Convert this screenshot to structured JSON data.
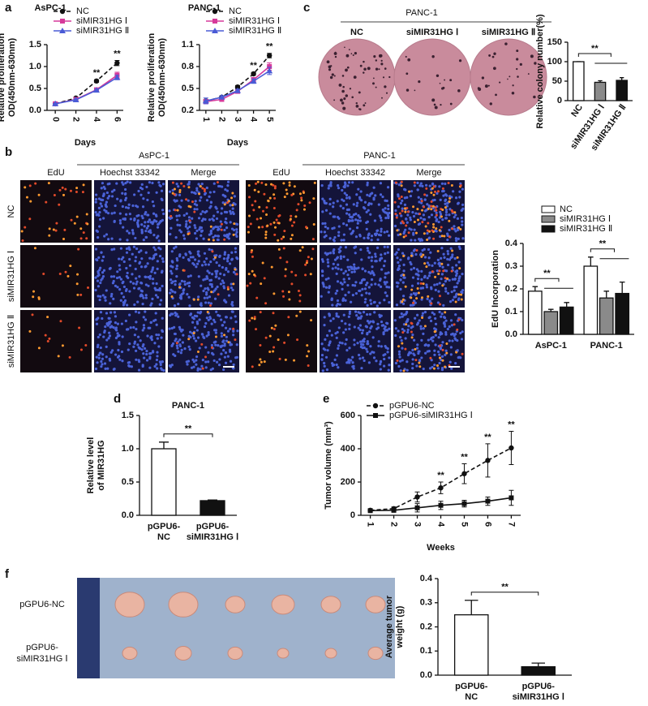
{
  "figure": {
    "panel_labels": [
      "a",
      "b",
      "c",
      "d",
      "e",
      "f"
    ],
    "colony": {
      "title": "PANC-1",
      "labels": [
        "NC",
        "siMIR31HG Ⅰ",
        "siMIR31HG Ⅱ"
      ]
    },
    "microscopy": {
      "groups": [
        "AsPC-1",
        "PANC-1"
      ],
      "channels": [
        "EdU",
        "Hoechst 33342",
        "Merge"
      ],
      "rows": [
        "NC",
        "siMIR31HG Ⅰ",
        "siMIR31HG Ⅱ"
      ]
    },
    "photo": {
      "rows": [
        [
          "pGPU6-NC"
        ],
        [
          "pGPU6-",
          "siMIR31HG Ⅰ"
        ]
      ]
    }
  },
  "chart_data": [
    {
      "type": "line",
      "title": "AsPC-1",
      "x_label": "Days",
      "y_label": [
        "Relative proliferation",
        "OD(450nm-630nm)"
      ],
      "x": [
        0,
        2,
        4,
        6
      ],
      "xlim": [
        -0.8,
        6.6
      ],
      "xticks": [
        0,
        2,
        4,
        6
      ],
      "ylim": [
        0,
        1.5
      ],
      "yticks": [
        {
          "value": 0,
          "label": "0.0"
        },
        0.5,
        {
          "value": 1,
          "label": "1.0"
        },
        1.5
      ],
      "series": [
        {
          "name": "NC",
          "color": "#111111",
          "marker": "circle",
          "dash": true,
          "values": [
            0.15,
            0.28,
            0.67,
            1.08
          ],
          "errors": [
            0.01,
            0.02,
            0.03,
            0.06
          ]
        },
        {
          "name": "siMIR31HG Ⅰ",
          "color": "#d63a9b",
          "marker": "square",
          "dash": false,
          "values": [
            0.15,
            0.25,
            0.47,
            0.8
          ],
          "errors": [
            0.01,
            0.02,
            0.02,
            0.07
          ]
        },
        {
          "name": "siMIR31HG Ⅱ",
          "color": "#4a5bd6",
          "marker": "triangle",
          "dash": false,
          "values": [
            0.15,
            0.24,
            0.46,
            0.75
          ],
          "errors": [
            0.01,
            0.02,
            0.02,
            0.05
          ]
        }
      ],
      "annotations": [
        {
          "x": 4,
          "text": "**"
        },
        {
          "x": 6,
          "text": "**"
        }
      ]
    },
    {
      "type": "line",
      "title": "PANC-1",
      "x_label": "Days",
      "y_label": [
        "Relative proliferation",
        "OD(450nm-630nm)"
      ],
      "x": [
        1,
        2,
        3,
        4,
        5
      ],
      "xlim": [
        0.6,
        5.4
      ],
      "xticks": [
        1,
        2,
        3,
        4,
        5
      ],
      "ylim": [
        0.2,
        1.1
      ],
      "yticks": [
        0.2,
        0.5,
        0.8,
        1.1
      ],
      "series": [
        {
          "name": "NC",
          "color": "#111111",
          "marker": "circle",
          "dash": true,
          "values": [
            0.33,
            0.38,
            0.52,
            0.7,
            0.95
          ],
          "errors": [
            0.02,
            0.02,
            0.02,
            0.02,
            0.03
          ]
        },
        {
          "name": "siMIR31HG Ⅰ",
          "color": "#d63a9b",
          "marker": "square",
          "dash": false,
          "values": [
            0.32,
            0.35,
            0.46,
            0.62,
            0.8
          ],
          "errors": [
            0.03,
            0.02,
            0.02,
            0.03,
            0.05
          ]
        },
        {
          "name": "siMIR31HG Ⅱ",
          "color": "#4a5bd6",
          "marker": "triangle",
          "dash": false,
          "values": [
            0.33,
            0.38,
            0.47,
            0.6,
            0.74
          ],
          "errors": [
            0.04,
            0.02,
            0.02,
            0.03,
            0.05
          ]
        }
      ],
      "annotations": [
        {
          "x": 4,
          "text": "**"
        },
        {
          "x": 5,
          "text": "**"
        }
      ]
    },
    {
      "type": "bar",
      "y_label": [
        "Relative colony number(%)"
      ],
      "categories": [
        "NC",
        "siMIR31HG Ⅰ",
        "siMIR31HG Ⅱ"
      ],
      "values": [
        100,
        47,
        52
      ],
      "errors": [
        0,
        4,
        7
      ],
      "colors": [
        "#ffffff",
        "#8a8a8a",
        "#111111"
      ],
      "ylim": [
        0,
        150
      ],
      "yticks": [
        0,
        50,
        100,
        150
      ],
      "significance": [
        "**"
      ]
    },
    {
      "type": "bar",
      "y_label": [
        "EdU Incorporation"
      ],
      "categories": [
        "AsPC-1",
        "PANC-1"
      ],
      "ylim": [
        0,
        0.4
      ],
      "yticks": [
        {
          "value": 0,
          "label": "0.0"
        },
        0.1,
        0.2,
        0.3,
        0.4
      ],
      "series": [
        {
          "name": "NC",
          "color": "#ffffff",
          "values": [
            0.19,
            0.3
          ],
          "errors": [
            0.02,
            0.04
          ]
        },
        {
          "name": "siMIR31HG Ⅰ",
          "color": "#8a8a8a",
          "values": [
            0.1,
            0.16
          ],
          "errors": [
            0.01,
            0.03
          ]
        },
        {
          "name": "siMIR31HG Ⅱ",
          "color": "#111111",
          "values": [
            0.12,
            0.18
          ],
          "errors": [
            0.02,
            0.05
          ]
        }
      ],
      "significance": [
        "**",
        "**"
      ]
    },
    {
      "type": "bar",
      "title": "PANC-1",
      "y_label": [
        "Relative level",
        "of MIR31HG"
      ],
      "categories": [
        [
          "pGPU6-",
          "NC"
        ],
        [
          "pGPU6-",
          "siMIR31HG Ⅰ"
        ]
      ],
      "values": [
        1.0,
        0.22
      ],
      "errors": [
        0.1,
        0.01
      ],
      "colors": [
        "#ffffff",
        "#111111"
      ],
      "ylim": [
        0,
        1.5
      ],
      "yticks": [
        {
          "value": 0,
          "label": "0.0"
        },
        0.5,
        {
          "value": 1,
          "label": "1.0"
        },
        1.5
      ],
      "significance": [
        "**"
      ]
    },
    {
      "type": "line",
      "x_label": "Weeks",
      "y_label": [
        "Tumor volume (mm³)"
      ],
      "x": [
        1,
        2,
        3,
        4,
        5,
        6,
        7
      ],
      "xlim": [
        0.6,
        7.4
      ],
      "xticks": [
        1,
        2,
        3,
        4,
        5,
        6,
        7
      ],
      "ylim": [
        0,
        600
      ],
      "yticks": [
        0,
        200,
        400,
        600
      ],
      "series": [
        {
          "name": "pGPU6-NC",
          "color": "#111111",
          "marker": "circle",
          "dash": true,
          "values": [
            30,
            40,
            110,
            165,
            250,
            330,
            405
          ],
          "errors": [
            5,
            10,
            30,
            35,
            60,
            100,
            100
          ]
        },
        {
          "name": "pGPU6-siMIR31HG Ⅰ",
          "color": "#111111",
          "marker": "square",
          "dash": false,
          "values": [
            28,
            30,
            45,
            60,
            70,
            85,
            105
          ],
          "errors": [
            5,
            8,
            25,
            25,
            20,
            25,
            45
          ]
        }
      ],
      "annotations": [
        {
          "x": 4,
          "text": "**"
        },
        {
          "x": 5,
          "text": "**"
        },
        {
          "x": 6,
          "text": "**"
        },
        {
          "x": 7,
          "text": "**"
        }
      ]
    },
    {
      "type": "bar",
      "y_label": [
        "Average tumor",
        "weight (g)"
      ],
      "categories": [
        [
          "pGPU6-",
          "NC"
        ],
        [
          "pGPU6-",
          "siMIR31HG Ⅰ"
        ]
      ],
      "values": [
        0.25,
        0.035
      ],
      "errors": [
        0.06,
        0.015
      ],
      "colors": [
        "#ffffff",
        "#111111"
      ],
      "ylim": [
        0,
        0.4
      ],
      "yticks": [
        {
          "value": 0,
          "label": "0.0"
        },
        0.1,
        0.2,
        0.3,
        0.4
      ],
      "significance": [
        "**"
      ]
    }
  ]
}
